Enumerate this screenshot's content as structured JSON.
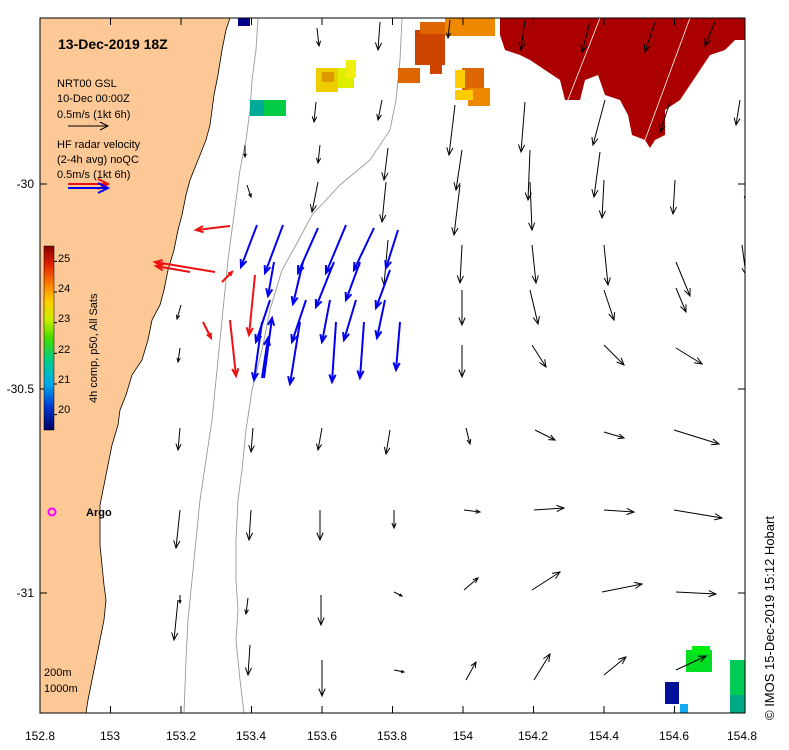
{
  "title": "13-Dec-2019 18Z",
  "model_legend": {
    "line1": "NRT00 GSL",
    "line2": "10-Dec 00:00Z",
    "line3": "0.5m/s (1kt 6h)"
  },
  "radar_legend": {
    "line1": "HF radar velocity",
    "line2": "(2-4h avg) noQC",
    "line3": "0.5m/s (1kt 6h)"
  },
  "colorbar": {
    "label": "4h comp, p50, All Sats",
    "ticks": [
      "25",
      "24",
      "23",
      "22",
      "21",
      "20"
    ],
    "range": [
      19.5,
      25.5
    ]
  },
  "x_ticks": [
    "152.8",
    "153",
    "153.2",
    "153.4",
    "153.6",
    "153.8",
    "154",
    "154.2",
    "154.4",
    "154.6",
    "154.8"
  ],
  "y_ticks": [
    "-30",
    "-30.5",
    "-31"
  ],
  "argo_label": "Argo",
  "isobath_labels": [
    "200m",
    "1000m"
  ],
  "credit": "© IMOS 15-Dec-2019 15:12 Hobart",
  "colors": {
    "land": "#fcc896",
    "model_arrow": "#000000",
    "radar_blue": "#0000ee",
    "radar_red": "#ee1111",
    "argo": "#ff00ff",
    "sst_warm": "#aa0000"
  }
}
